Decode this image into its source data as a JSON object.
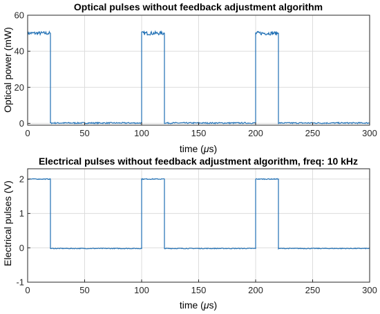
{
  "chart_data": [
    {
      "type": "line",
      "title": "Optical pulses without feedback adjustment algorithm",
      "xlabel_prefix": "time (",
      "xlabel_unit": "μ",
      "xlabel_suffix": "s)",
      "ylabel": "Optical power (mW)",
      "xlim": [
        0,
        300
      ],
      "ylim": [
        -1,
        60
      ],
      "xticks": [
        0,
        50,
        100,
        150,
        200,
        250,
        300
      ],
      "yticks": [
        0,
        20,
        40,
        60
      ],
      "grid": true,
      "series": [
        {
          "color": "#1f6fb4",
          "high_level": 50,
          "low_level": 0.2,
          "pulses": [
            [
              0,
              20
            ],
            [
              100,
              120
            ],
            [
              200,
              220
            ]
          ],
          "high_noise": 1.0,
          "low_noise": 0.35
        }
      ]
    },
    {
      "type": "line",
      "title": "Electrical pulses without feedback adjustment algorithm, freq: 10 kHz",
      "xlabel_prefix": "time (",
      "xlabel_unit": "μ",
      "xlabel_suffix": "s)",
      "ylabel": "Electrical pulses (V)",
      "xlim": [
        0,
        300
      ],
      "ylim": [
        -1,
        2.3
      ],
      "xticks": [
        0,
        50,
        100,
        150,
        200,
        250,
        300
      ],
      "yticks": [
        -1,
        0,
        1,
        2
      ],
      "grid": true,
      "series": [
        {
          "color": "#1f6fb4",
          "high_level": 2.0,
          "low_level": -0.02,
          "pulses": [
            [
              0,
              20
            ],
            [
              100,
              120
            ],
            [
              200,
              220
            ]
          ],
          "high_noise": 0.012,
          "low_noise": 0.01
        }
      ]
    }
  ]
}
